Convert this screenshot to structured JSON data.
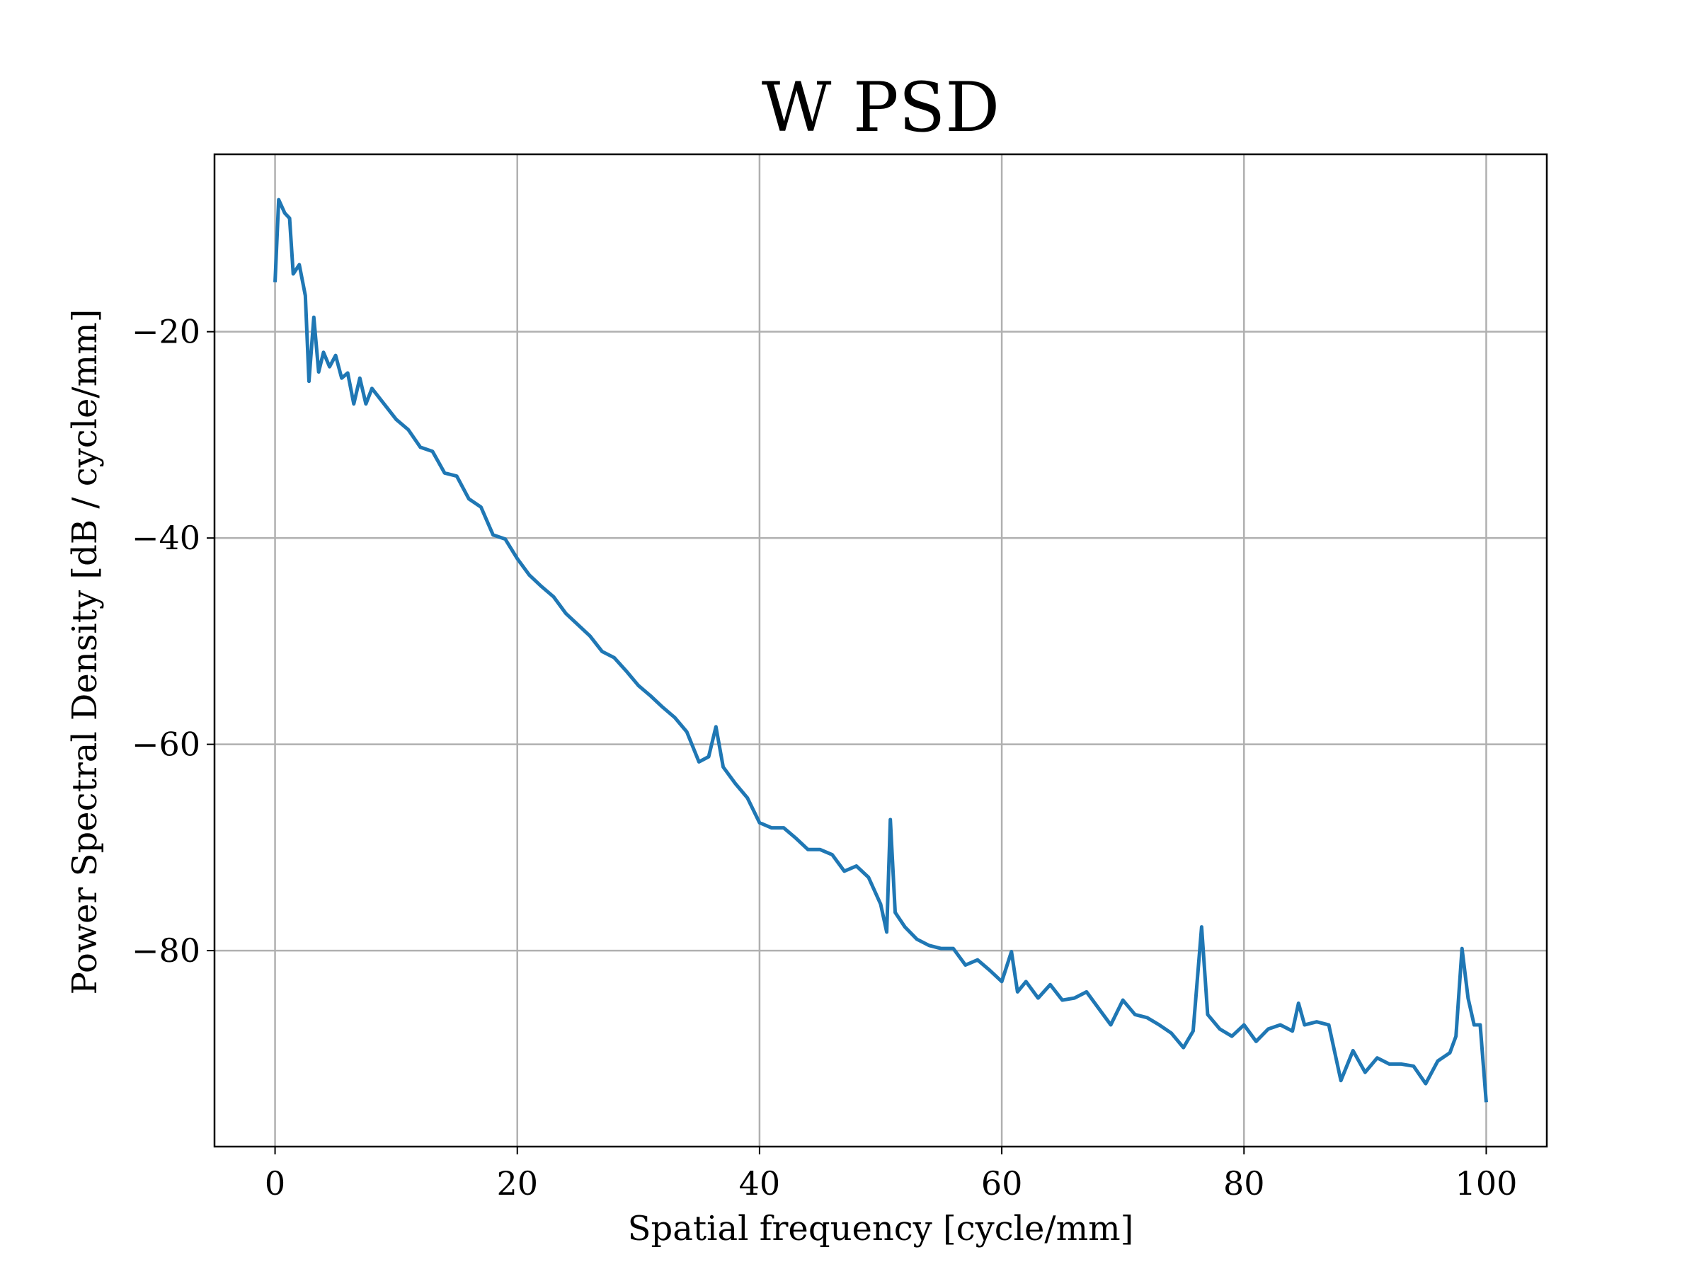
{
  "chart_data": {
    "type": "line",
    "title": "W PSD",
    "xlabel": "Spatial frequency [cycle/mm]",
    "ylabel": "Power Spectral Density [dB / cycle/mm]",
    "x": [
      0,
      0.3,
      0.8,
      1.2,
      1.5,
      2,
      2.5,
      2.8,
      3.2,
      3.6,
      4,
      4.5,
      5,
      5.5,
      6,
      6.5,
      7,
      7.5,
      8,
      9,
      10,
      11,
      12,
      13,
      14,
      15,
      16,
      17,
      18,
      19,
      20,
      21,
      22,
      23,
      24,
      25,
      26,
      27,
      28,
      29,
      30,
      31,
      32,
      33,
      34,
      35,
      35.8,
      36.4,
      37,
      38,
      39,
      40,
      41,
      42,
      43,
      44,
      45,
      46,
      47,
      48,
      49,
      50,
      50.5,
      50.8,
      51.2,
      52,
      53,
      54,
      55,
      56,
      57,
      58,
      59,
      60,
      60.8,
      61.3,
      62,
      63,
      64,
      65,
      66,
      67,
      68,
      69,
      70,
      71,
      72,
      73,
      74,
      75,
      75.8,
      76.5,
      77,
      78,
      79,
      80,
      81,
      82,
      83,
      84,
      84.5,
      85,
      86,
      87,
      88,
      89,
      90,
      91,
      92,
      93,
      94,
      95,
      96,
      97,
      97.5,
      98,
      98.5,
      99,
      99.5,
      100
    ],
    "series": [
      {
        "name": "W",
        "color": "#1f77b4",
        "values": [
          -15.2,
          -7.2,
          -8.5,
          -9,
          -14.4,
          -13.5,
          -16.5,
          -24.8,
          -18.6,
          -23.9,
          -22,
          -23.4,
          -22.3,
          -24.5,
          -24,
          -27,
          -24.5,
          -27,
          -25.5,
          -27,
          -28.5,
          -29.5,
          -31.2,
          -31.6,
          -33.7,
          -34,
          -36.2,
          -37,
          -39.7,
          -40.1,
          -42,
          -43.6,
          -44.7,
          -45.7,
          -47.3,
          -48.4,
          -49.5,
          -51,
          -51.6,
          -52.9,
          -54.3,
          -55.3,
          -56.4,
          -57.4,
          -58.8,
          -61.7,
          -61.2,
          -58.3,
          -62.2,
          -63.8,
          -65.2,
          -67.6,
          -68.1,
          -68.1,
          -69.1,
          -70.2,
          -70.2,
          -70.7,
          -72.3,
          -71.8,
          -72.9,
          -75.5,
          -78.2,
          -67.3,
          -76.3,
          -77.7,
          -78.9,
          -79.5,
          -79.8,
          -79.8,
          -81.4,
          -80.9,
          -81.9,
          -83,
          -80.1,
          -84,
          -83,
          -84.6,
          -83.3,
          -84.8,
          -84.6,
          -84,
          -85.6,
          -87.2,
          -84.8,
          -86.2,
          -86.5,
          -87.2,
          -88,
          -89.4,
          -87.8,
          -77.7,
          -86.2,
          -87.6,
          -88.3,
          -87.2,
          -88.8,
          -87.6,
          -87.2,
          -87.8,
          -85.1,
          -87.2,
          -86.9,
          -87.2,
          -92.6,
          -89.7,
          -91.8,
          -90.4,
          -91,
          -91,
          -91.2,
          -92.9,
          -90.7,
          -89.9,
          -88.3,
          -79.8,
          -84.6,
          -87.2,
          -87.2,
          -94.7
        ]
      }
    ],
    "xlim": [
      -5,
      105
    ],
    "ylim": [
      -99.0,
      -2.8
    ],
    "xticks": [
      0,
      20,
      40,
      60,
      80,
      100
    ],
    "yticks": [
      {
        "value": -20,
        "label": "−20"
      },
      {
        "value": -40,
        "label": "−40"
      },
      {
        "value": -60,
        "label": "−60"
      },
      {
        "value": -80,
        "label": "−80"
      }
    ],
    "grid": true
  }
}
